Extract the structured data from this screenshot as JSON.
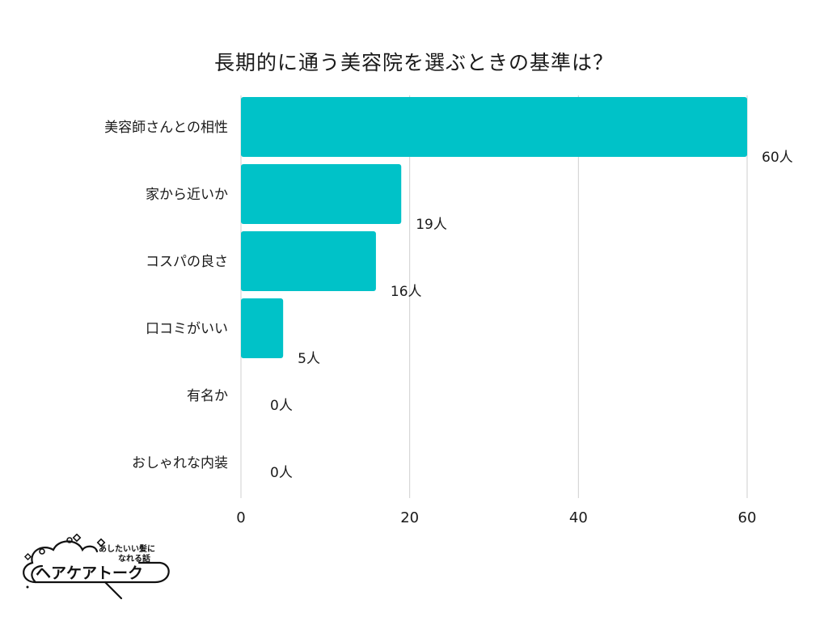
{
  "title": "長期的に通う美容院を選ぶときの基準は？",
  "chart_data": {
    "type": "bar",
    "orientation": "horizontal",
    "title": "長期的に通う美容院を選ぶときの基準は？",
    "categories": [
      "美容師さんとの相性",
      "家から近いか",
      "コスパの良さ",
      "口コミがいい",
      "有名か",
      "おしゃれな内装"
    ],
    "values": [
      60,
      19,
      16,
      5,
      0,
      0
    ],
    "value_labels": [
      "60人",
      "19人",
      "16人",
      "5人",
      "0人",
      "0人"
    ],
    "xlim": [
      0,
      60
    ],
    "xticks": [
      "0",
      "20",
      "40",
      "60"
    ],
    "grid": true,
    "bar_color": "#00c2c8"
  },
  "logo": {
    "tagline_line1": "あしたいい髪に",
    "tagline_line2": "なれる話",
    "name": "ヘアケアトーク"
  }
}
